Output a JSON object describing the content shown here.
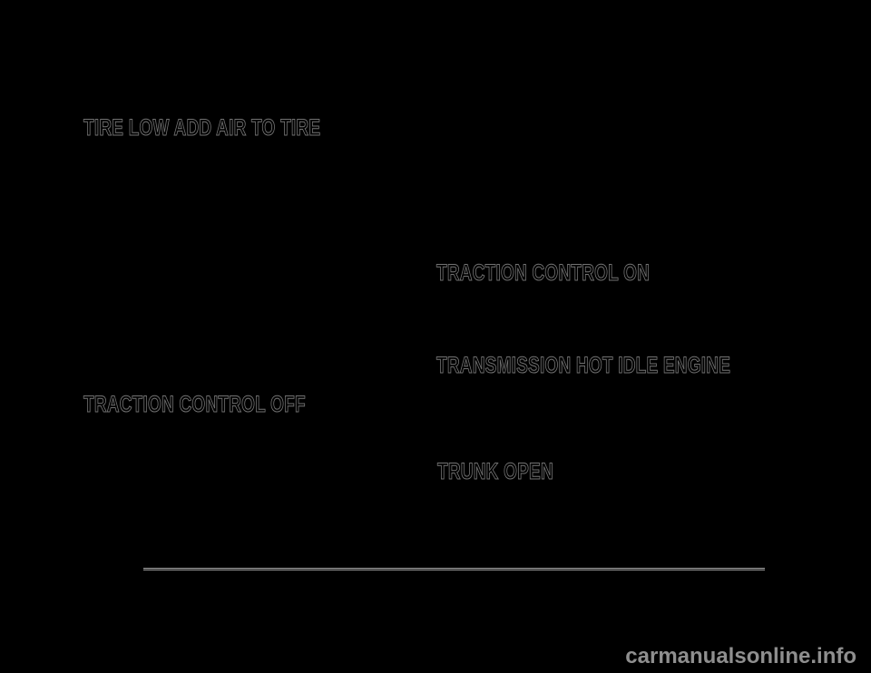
{
  "page": {
    "background_color": "#000000",
    "heading_fill_color": "#000000",
    "heading_outline_color": "#868686",
    "headings": [
      {
        "id": "tire-low-add-air",
        "label": "TIRE LOW ADD AIR TO TIRE",
        "column": "left"
      },
      {
        "id": "traction-control-on",
        "label": "TRACTION CONTROL ON",
        "column": "right"
      },
      {
        "id": "transmission-hot",
        "label": "TRANSMISSION HOT IDLE ENGINE",
        "column": "right"
      },
      {
        "id": "traction-control-off",
        "label": "TRACTION CONTROL OFF",
        "column": "left"
      },
      {
        "id": "trunk-open",
        "label": "TRUNK OPEN",
        "column": "right"
      }
    ],
    "divider": {
      "color_light": "#9a9a9a",
      "color_dark": "#2e2e2e"
    },
    "watermark": {
      "label": "carmanualsonline.info",
      "color": "#8f8f8f"
    }
  }
}
